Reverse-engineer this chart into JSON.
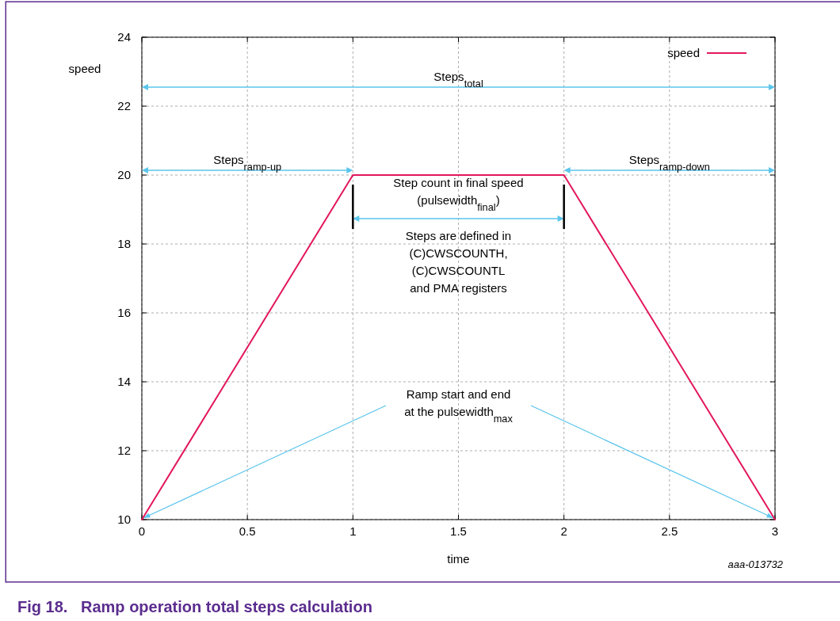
{
  "chart_data": {
    "type": "line",
    "title": "Fig 18.   Ramp operation total steps calculation",
    "xlabel": "time",
    "ylabel": "speed",
    "x": [
      0,
      1,
      2,
      3
    ],
    "series": [
      {
        "name": "speed",
        "color": "#e2185b",
        "values": [
          10,
          20,
          20,
          10
        ]
      }
    ],
    "xlim": [
      0,
      3
    ],
    "xticks": [
      0,
      0.5,
      1,
      1.5,
      2,
      2.5,
      3
    ],
    "ylim": [
      10,
      24
    ],
    "yticks": [
      10,
      12,
      14,
      16,
      18,
      20,
      22,
      24
    ],
    "grid": true,
    "legend": "top right",
    "line_style": "solid",
    "annotations": [
      "Steps$_{total}$",
      "Steps$_{ramp-up}$",
      "Steps$_{ramp-down}$",
      "Step count in final speed\n(pulsewidth$_{final}$)",
      "Steps are defined in\n(C)CWSCOUNTH,\n(C)CWSCOUNTL\nand PMA registers",
      "Ramp start and end\nat the pulsewidth$_{max}$",
      "aaa-013732"
    ]
  }
}
